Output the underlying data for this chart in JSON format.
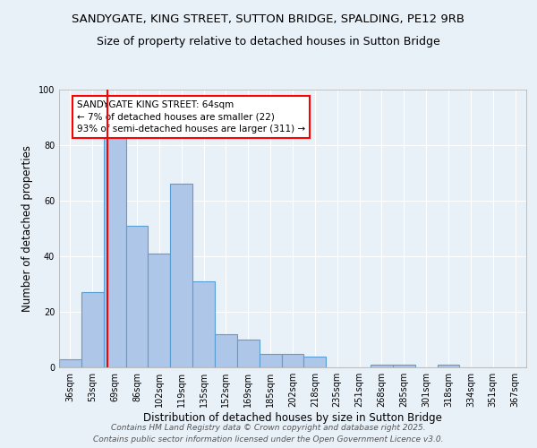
{
  "title_line1": "SANDYGATE, KING STREET, SUTTON BRIDGE, SPALDING, PE12 9RB",
  "title_line2": "Size of property relative to detached houses in Sutton Bridge",
  "xlabel": "Distribution of detached houses by size in Sutton Bridge",
  "ylabel": "Number of detached properties",
  "categories": [
    "36sqm",
    "53sqm",
    "69sqm",
    "86sqm",
    "102sqm",
    "119sqm",
    "135sqm",
    "152sqm",
    "169sqm",
    "185sqm",
    "202sqm",
    "218sqm",
    "235sqm",
    "251sqm",
    "268sqm",
    "285sqm",
    "301sqm",
    "318sqm",
    "334sqm",
    "351sqm",
    "367sqm"
  ],
  "values": [
    3,
    27,
    84,
    51,
    41,
    66,
    31,
    12,
    10,
    5,
    5,
    4,
    0,
    0,
    1,
    1,
    0,
    1,
    0,
    0,
    0
  ],
  "bar_color": "#aec6e8",
  "bar_edge_color": "#5a9fd4",
  "bar_width": 1.0,
  "annotation_text": "SANDYGATE KING STREET: 64sqm\n← 7% of detached houses are smaller (22)\n93% of semi-detached houses are larger (311) →",
  "annotation_box_color": "white",
  "annotation_box_edge_color": "red",
  "ylim": [
    0,
    100
  ],
  "yticks": [
    0,
    20,
    40,
    60,
    80,
    100
  ],
  "background_color": "#e8f0f8",
  "grid_color": "white",
  "footer_line1": "Contains HM Land Registry data © Crown copyright and database right 2025.",
  "footer_line2": "Contains public sector information licensed under the Open Government Licence v3.0.",
  "title_fontsize": 9.5,
  "subtitle_fontsize": 9,
  "axis_label_fontsize": 8.5,
  "tick_fontsize": 7,
  "annotation_fontsize": 7.5,
  "footer_fontsize": 6.5
}
